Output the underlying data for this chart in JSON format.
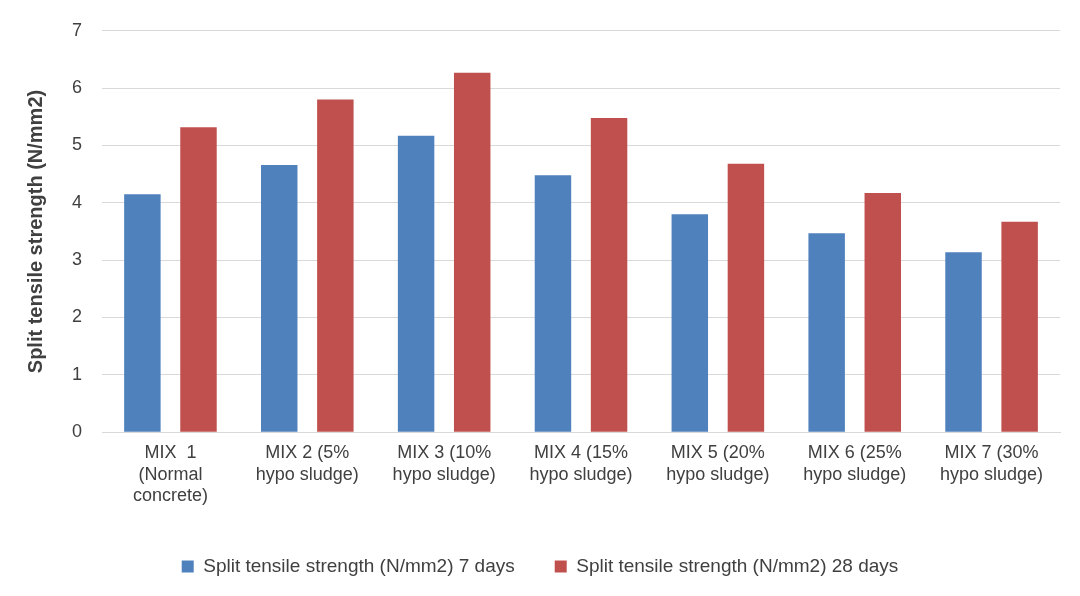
{
  "chart_data": {
    "type": "bar",
    "ylabel": "Split tensile strength (N/mm2)",
    "categories": [
      "MIX  1 (Normal concrete)",
      "MIX 2 (5% hypo sludge)",
      "MIX 3 (10% hypo sludge)",
      "MIX 4 (15% hypo sludge)",
      "MIX 5 (20% hypo sludge)",
      "MIX 6 (25% hypo sludge)",
      "MIX 7 (30% hypo sludge)"
    ],
    "series": [
      {
        "name": "Split tensile strength (N/mm2) 7 days",
        "color": "#4f81bd",
        "values": [
          4.15,
          4.66,
          5.17,
          4.48,
          3.8,
          3.47,
          3.14
        ]
      },
      {
        "name": "Split tensile strength (N/mm2) 28 days",
        "color": "#c0504d",
        "values": [
          5.32,
          5.8,
          6.27,
          5.48,
          4.68,
          4.17,
          3.67
        ]
      }
    ],
    "ylim": [
      0,
      7
    ],
    "yticks": [
      0,
      1,
      2,
      3,
      4,
      5,
      6,
      7
    ],
    "grid": "y",
    "legend": "bottom"
  }
}
